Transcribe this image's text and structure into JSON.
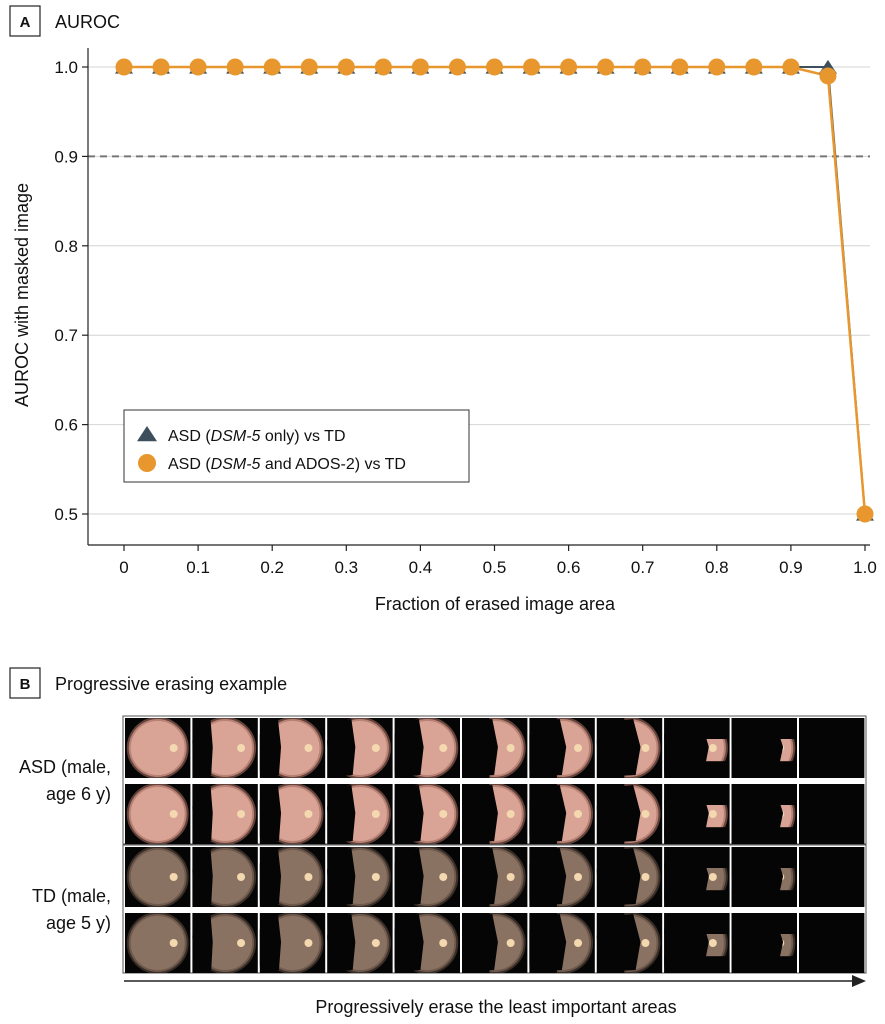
{
  "panel_a": {
    "letter": "A",
    "title": "AUROC"
  },
  "panel_b": {
    "letter": "B",
    "title": "Progressive erasing example"
  },
  "chart_data": {
    "type": "line",
    "xlabel": "Fraction of erased image area",
    "ylabel": "AUROC with masked image",
    "xlim": [
      0,
      1.0
    ],
    "ylim": [
      0.5,
      1.0
    ],
    "xticks": [
      "0",
      "0.1",
      "0.2",
      "0.3",
      "0.4",
      "0.5",
      "0.6",
      "0.7",
      "0.8",
      "0.9",
      "1.0"
    ],
    "yticks": [
      "0.5",
      "0.6",
      "0.7",
      "0.8",
      "0.9",
      "1.0"
    ],
    "reference_line": {
      "y": 0.9,
      "style": "dashed"
    },
    "grid": "horizontal",
    "legend_position": "lower-left",
    "x": [
      0,
      0.05,
      0.1,
      0.15,
      0.2,
      0.25,
      0.3,
      0.35,
      0.4,
      0.45,
      0.5,
      0.55,
      0.6,
      0.65,
      0.7,
      0.75,
      0.8,
      0.85,
      0.9,
      0.95,
      1.0
    ],
    "series": [
      {
        "name_parts": [
          "ASD (",
          "DSM-5",
          " only) vs TD"
        ],
        "marker": "triangle",
        "color": "#3d4f5c",
        "values": [
          1.0,
          1.0,
          1.0,
          1.0,
          1.0,
          1.0,
          1.0,
          1.0,
          1.0,
          1.0,
          1.0,
          1.0,
          1.0,
          1.0,
          1.0,
          1.0,
          1.0,
          1.0,
          1.0,
          1.0,
          0.5
        ]
      },
      {
        "name_parts": [
          "ASD (",
          "DSM-5",
          " and ADOS-2) vs TD"
        ],
        "marker": "circle",
        "color": "#e8972e",
        "values": [
          1.0,
          1.0,
          1.0,
          1.0,
          1.0,
          1.0,
          1.0,
          1.0,
          1.0,
          1.0,
          1.0,
          1.0,
          1.0,
          1.0,
          1.0,
          1.0,
          1.0,
          1.0,
          1.0,
          0.99,
          0.5
        ]
      }
    ]
  },
  "erasing": {
    "groups": [
      {
        "label_lines": [
          "ASD (male,",
          "age 6 y)"
        ],
        "tint": "#d9a496",
        "rim": "#a06a5e"
      },
      {
        "label_lines": [
          "TD (male,",
          "age 5 y)"
        ],
        "tint": "#8a7262",
        "rim": "#5c4a3e"
      }
    ],
    "steps": 11,
    "rows_per_group": 2
  },
  "arrow_caption": "Progressively erase the least important areas"
}
